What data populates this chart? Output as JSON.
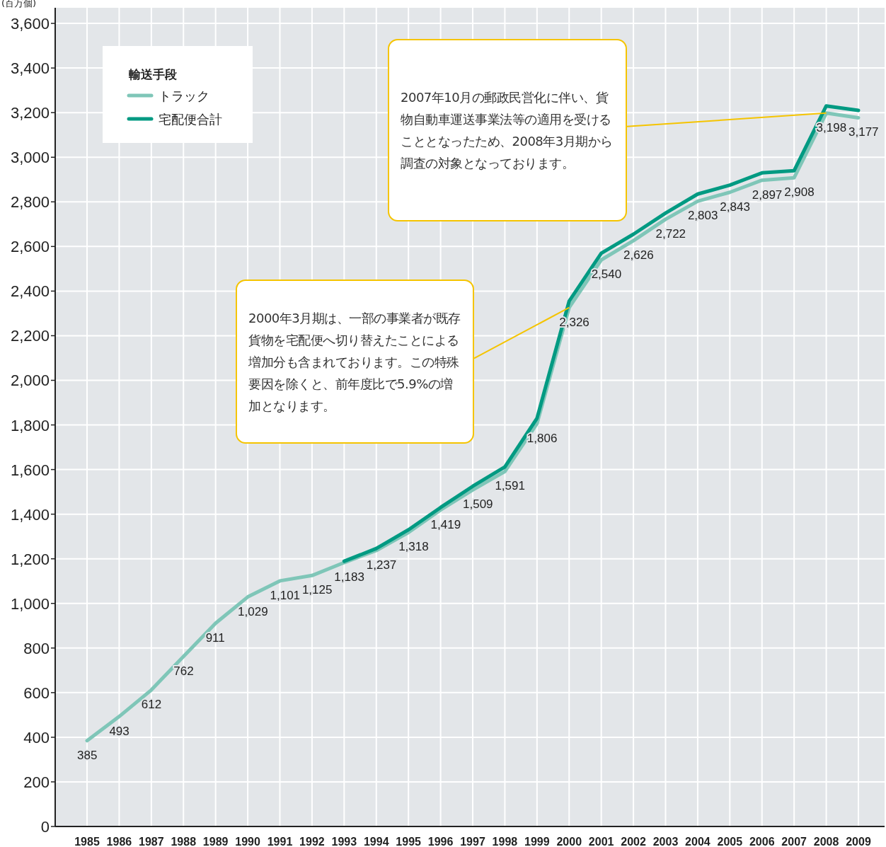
{
  "chart_data": {
    "type": "line",
    "ylabel": "(百万個)",
    "legend_title": "輸送手段",
    "legend": "top left",
    "grid": true,
    "marker": "none",
    "line_style": "solid",
    "categories": [
      "1985",
      "1986",
      "1987",
      "1988",
      "1989",
      "1990",
      "1991",
      "1992",
      "1993",
      "1994",
      "1995",
      "1996",
      "1997",
      "1998",
      "1999",
      "2000",
      "2001",
      "2002",
      "2003",
      "2004",
      "2005",
      "2006",
      "2007",
      "2008",
      "2009"
    ],
    "ylim": [
      0,
      3670
    ],
    "yticks": [
      0,
      200,
      400,
      600,
      800,
      {
        "value": 1000,
        "label": "1,000"
      },
      {
        "value": 1200,
        "label": "1,200"
      },
      {
        "value": 1400,
        "label": "1,400"
      },
      {
        "value": 1600,
        "label": "1,600"
      },
      {
        "value": 1800,
        "label": "1,800"
      },
      {
        "value": 2000,
        "label": "2,000"
      },
      {
        "value": 2200,
        "label": "2,200"
      },
      {
        "value": 2400,
        "label": "2,400"
      },
      {
        "value": 2600,
        "label": "2,600"
      },
      {
        "value": 2800,
        "label": "2,800"
      },
      {
        "value": 3000,
        "label": "3,000"
      },
      {
        "value": 3200,
        "label": "3,200"
      },
      {
        "value": 3400,
        "label": "3,400"
      },
      {
        "value": 3600,
        "label": "3,600"
      }
    ],
    "series": [
      {
        "name": "トラック",
        "color": "#7fc6b8",
        "values": [
          385,
          493,
          612,
          762,
          911,
          1029,
          1101,
          1125,
          1183,
          1237,
          1318,
          1419,
          1509,
          1591,
          1806,
          2326,
          2540,
          2626,
          2722,
          2803,
          2843,
          2897,
          2908,
          3198,
          3177
        ],
        "value_labels": [
          "385",
          "493",
          "612",
          "762",
          "911",
          "1,029",
          "1,101",
          "1,125",
          "1,183",
          "1,237",
          "1,318",
          "1,419",
          "1,509",
          "1,591",
          "1,806",
          "2,326",
          "2,540",
          "2,626",
          "2,722",
          "2,803",
          "2,843",
          "2,897",
          "2,908",
          "3,198",
          "3,177"
        ]
      },
      {
        "name": "宅配便合計",
        "color": "#009a82",
        "values": [
          null,
          null,
          null,
          null,
          null,
          null,
          null,
          null,
          1189,
          1246,
          1330,
          1430,
          1525,
          1612,
          1830,
          2355,
          2570,
          2655,
          2750,
          2835,
          2875,
          2930,
          2940,
          3230,
          3210
        ]
      }
    ],
    "annotations": [
      {
        "text": "2007年10月の郵政民営化に伴い、貨物自動車運送事業法等の適用を受けることとなったため、2008年3月期から調査の対象となっております。",
        "x": "2008",
        "y": 3198
      },
      {
        "text": "2000年3月期は、一部の事業者が既存貨物を宅配便へ切り替えたことによる増加分も含まれております。この特殊要因を除くと、前年度比で5.9%の増加となります。",
        "x": "2000",
        "y": 2326
      }
    ]
  }
}
